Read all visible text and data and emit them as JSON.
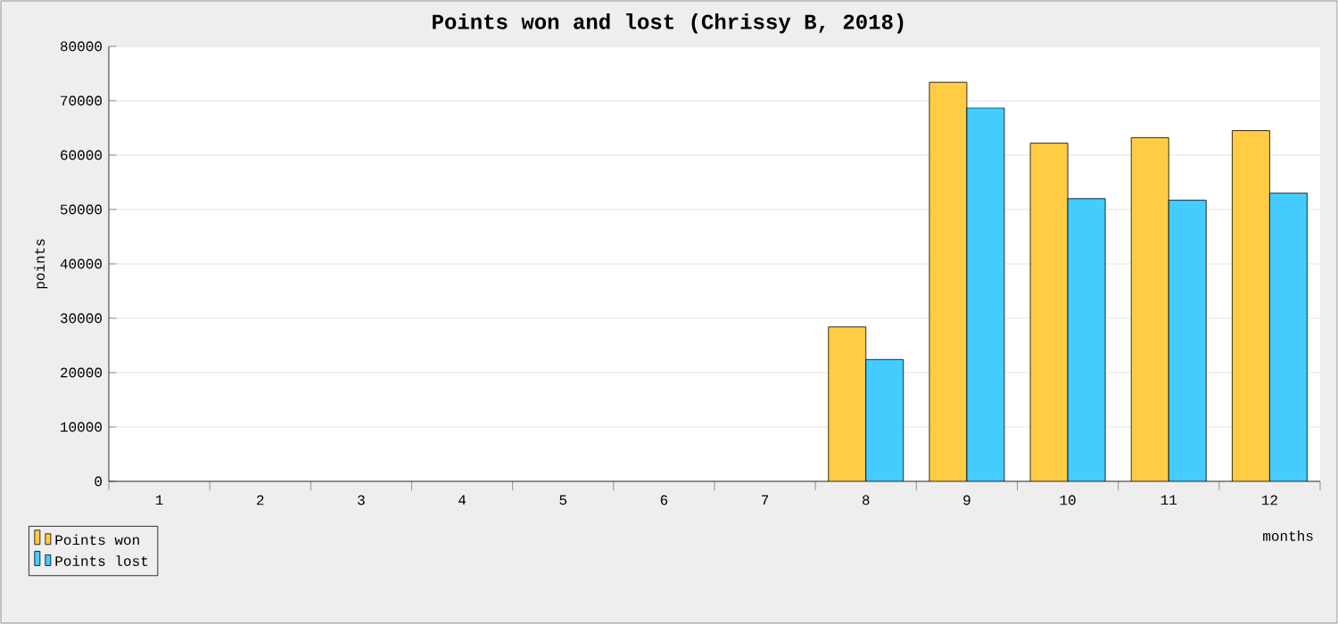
{
  "chart_data": {
    "type": "bar",
    "title": "Points won and lost (Chrissy B, 2018)",
    "xlabel": "months",
    "ylabel": "points",
    "categories": [
      "1",
      "2",
      "3",
      "4",
      "5",
      "6",
      "7",
      "8",
      "9",
      "10",
      "11",
      "12"
    ],
    "series": [
      {
        "name": "Points won",
        "color": "#ffcc44",
        "values": [
          null,
          null,
          null,
          null,
          null,
          null,
          null,
          28400,
          73400,
          62200,
          63200,
          64500
        ]
      },
      {
        "name": "Points lost",
        "color": "#44ccff",
        "values": [
          null,
          null,
          null,
          null,
          null,
          null,
          null,
          22400,
          68700,
          52000,
          51700,
          53000
        ]
      }
    ],
    "ylim": [
      0,
      80000
    ],
    "yticks": [
      0,
      10000,
      20000,
      30000,
      40000,
      50000,
      60000,
      70000,
      80000
    ],
    "grid": "y",
    "legend": "bottom left"
  }
}
